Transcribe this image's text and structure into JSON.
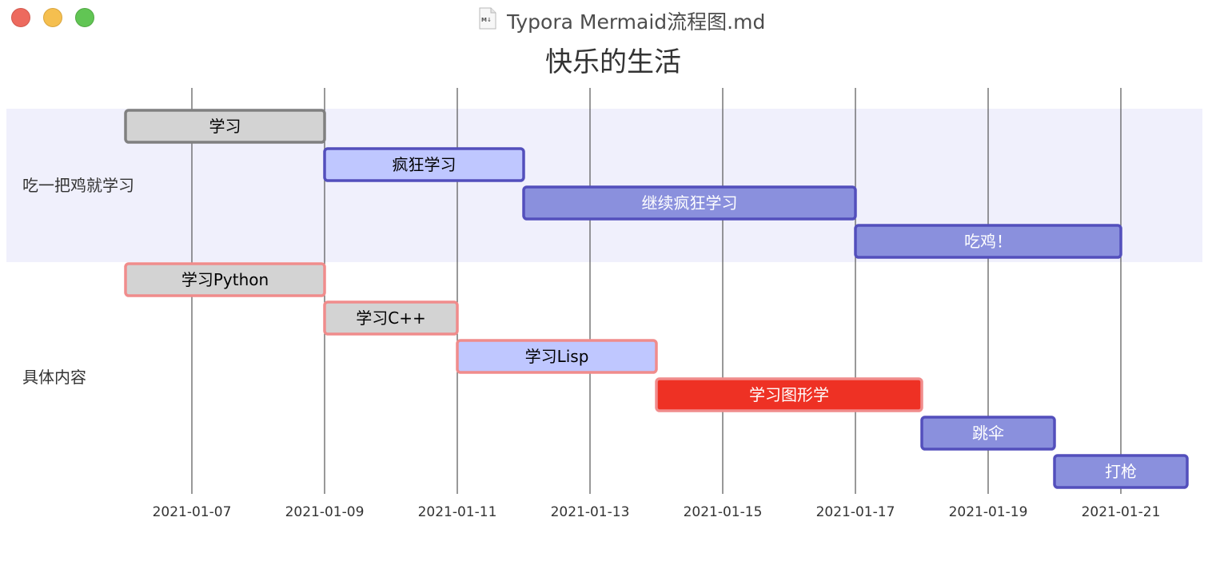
{
  "window": {
    "title": "Typora Mermaid流程图.md",
    "file_icon": "markdown-file-icon"
  },
  "chart_data": {
    "type": "gantt",
    "title": "快乐的生活",
    "x_axis": {
      "range": [
        "2021-01-05",
        "2021-01-22"
      ],
      "ticks": [
        "2021-01-07",
        "2021-01-09",
        "2021-01-11",
        "2021-01-13",
        "2021-01-15",
        "2021-01-17",
        "2021-01-19",
        "2021-01-21"
      ]
    },
    "sections": [
      {
        "name": "吃一把鸡就学习",
        "band_color": "#f0f0fc",
        "tasks": [
          {
            "name": "学习",
            "start": "2021-01-06",
            "end": "2021-01-09",
            "status": "done",
            "fill": "#d3d3d3",
            "stroke": "#808080",
            "text_color": "#000000"
          },
          {
            "name": "疯狂学习",
            "start": "2021-01-09",
            "end": "2021-01-12",
            "status": "active",
            "fill": "#bfc7ff",
            "stroke": "#534fbc",
            "text_color": "#000000"
          },
          {
            "name": "继续疯狂学习",
            "start": "2021-01-12",
            "end": "2021-01-17",
            "status": "normal",
            "fill": "#8a90dd",
            "stroke": "#534fbc",
            "text_color": "#ffffff"
          },
          {
            "name": "吃鸡！",
            "start": "2021-01-17",
            "end": "2021-01-21",
            "status": "normal",
            "fill": "#8a90dd",
            "stroke": "#534fbc",
            "text_color": "#ffffff"
          }
        ]
      },
      {
        "name": "具体内容",
        "band_color": "#ffffff",
        "tasks": [
          {
            "name": "学习Python",
            "start": "2021-01-06",
            "end": "2021-01-09",
            "status": "crit-done",
            "fill": "#d3d3d3",
            "stroke": "#f08c8c",
            "text_color": "#000000"
          },
          {
            "name": "学习C++",
            "start": "2021-01-09",
            "end": "2021-01-11",
            "status": "crit-done",
            "fill": "#d3d3d3",
            "stroke": "#f08c8c",
            "text_color": "#000000"
          },
          {
            "name": "学习Lisp",
            "start": "2021-01-11",
            "end": "2021-01-14",
            "status": "crit-active",
            "fill": "#bfc7ff",
            "stroke": "#f08c8c",
            "text_color": "#000000"
          },
          {
            "name": "学习图形学",
            "start": "2021-01-14",
            "end": "2021-01-18",
            "status": "crit",
            "fill": "#ee3124",
            "stroke": "#f08c8c",
            "text_color": "#ffffff"
          },
          {
            "name": "跳伞",
            "start": "2021-01-18",
            "end": "2021-01-20",
            "status": "normal",
            "fill": "#8a90dd",
            "stroke": "#534fbc",
            "text_color": "#ffffff"
          },
          {
            "name": "打枪",
            "start": "2021-01-20",
            "end": "2021-01-22",
            "status": "normal",
            "fill": "#8a90dd",
            "stroke": "#534fbc",
            "text_color": "#ffffff"
          }
        ]
      }
    ],
    "grid": true
  }
}
